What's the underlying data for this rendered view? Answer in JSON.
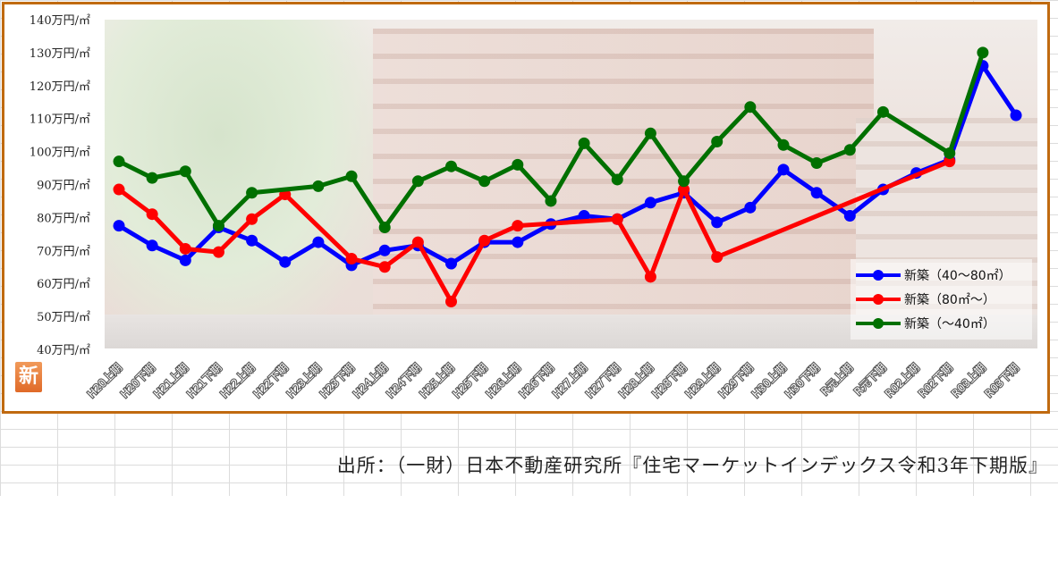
{
  "chart_data": {
    "type": "line",
    "title": "",
    "xlabel": "",
    "ylabel": "",
    "ylim": [
      40,
      140
    ],
    "y_ticks": [
      "40万円/㎡",
      "50万円/㎡",
      "60万円/㎡",
      "70万円/㎡",
      "80万円/㎡",
      "90万円/㎡",
      "100万円/㎡",
      "110万円/㎡",
      "120万円/㎡",
      "130万円/㎡",
      "140万円/㎡"
    ],
    "categories": [
      "H20上期",
      "H20下期",
      "H21上期",
      "H21下期",
      "H22上期",
      "H22下期",
      "H23上期",
      "H23下期",
      "H24上期",
      "H24下期",
      "H25上期",
      "H25下期",
      "H26上期",
      "H26下期",
      "H27上期",
      "H27下期",
      "H28上期",
      "H28下期",
      "H29上期",
      "H29下期",
      "H30上期",
      "H30下期",
      "R元上期",
      "R元下期",
      "R02上期",
      "R02下期",
      "R03上期",
      "R03下期"
    ],
    "legend_position": "bottom-right",
    "series": [
      {
        "name": "新築（40～80㎡）",
        "color": "#0000ff",
        "values": [
          77.5,
          71.5,
          67,
          77,
          73,
          66.5,
          72.5,
          65.5,
          70,
          71.5,
          66,
          72.5,
          72.5,
          78,
          80.5,
          79.5,
          84.5,
          87.5,
          78.5,
          83,
          94.5,
          87.5,
          80.5,
          88.5,
          93.5,
          97.5,
          126,
          111
        ]
      },
      {
        "name": "新築（80㎡～）",
        "color": "#ff0000",
        "values": [
          88.5,
          81,
          70.5,
          69.5,
          79.5,
          87,
          null,
          67.5,
          65,
          72.5,
          54.5,
          73,
          77.5,
          null,
          null,
          79.5,
          62,
          88.5,
          68,
          null,
          null,
          null,
          null,
          null,
          null,
          97,
          null,
          null
        ]
      },
      {
        "name": "新築（～40㎡）",
        "color": "#007000",
        "values": [
          97,
          92,
          94,
          77.5,
          87.5,
          null,
          89.5,
          92.5,
          77,
          91,
          95.5,
          91,
          96,
          85,
          102.5,
          91.5,
          105.5,
          91,
          103,
          113.5,
          102,
          96.5,
          100.5,
          112,
          null,
          99.5,
          130,
          null
        ]
      }
    ]
  },
  "badge": {
    "text": "新"
  },
  "source": {
    "text": "出所：（一財）日本不動産研究所『住宅マーケットインデックス令和3年下期版』"
  }
}
